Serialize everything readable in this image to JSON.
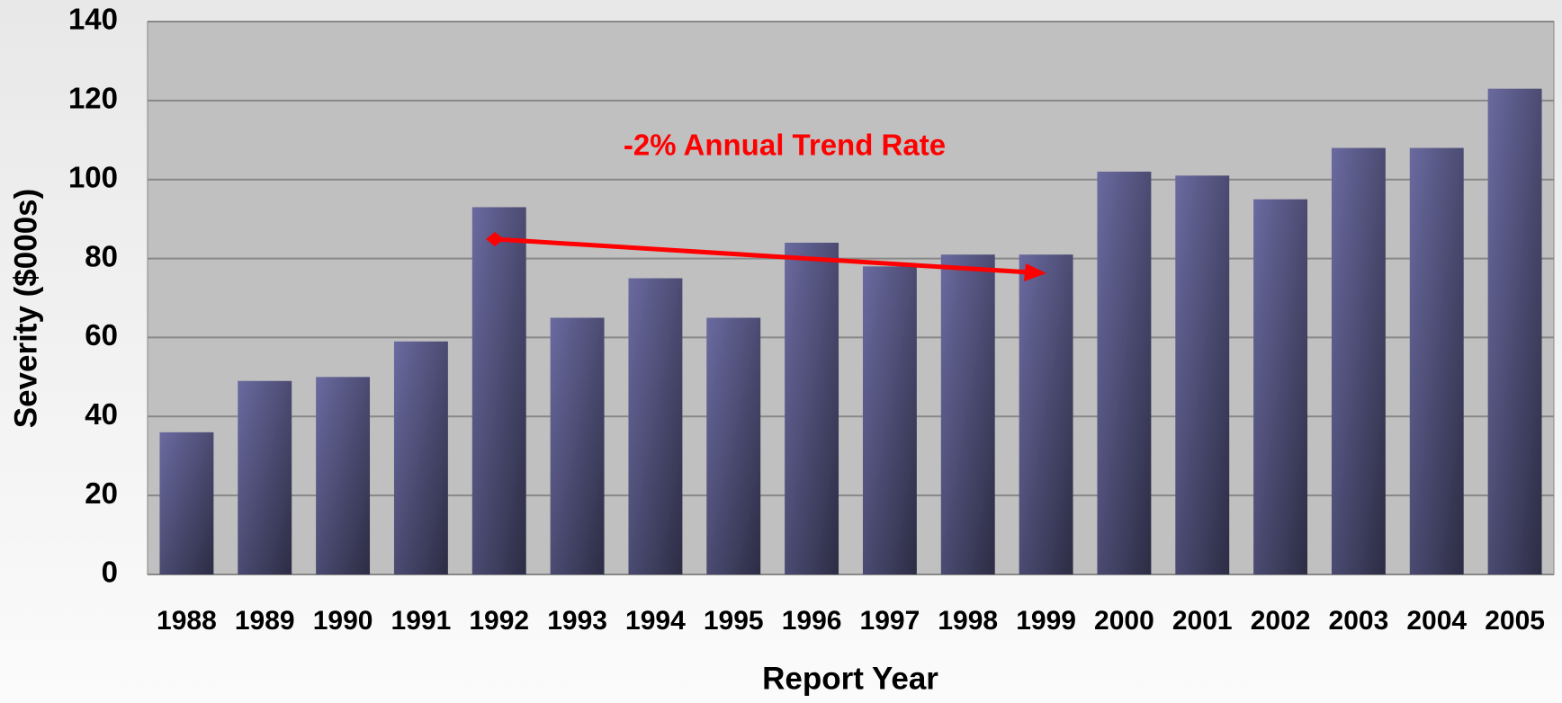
{
  "chart_data": {
    "type": "bar",
    "annotation": "-2% Annual Trend Rate",
    "x_label": "Report Year",
    "y_label": "Severity ($000s)",
    "categories": [
      "1988",
      "1989",
      "1990",
      "1991",
      "1992",
      "1993",
      "1994",
      "1995",
      "1996",
      "1997",
      "1998",
      "1999",
      "2000",
      "2001",
      "2002",
      "2003",
      "2004",
      "2005"
    ],
    "values": [
      36,
      49,
      50,
      59,
      93,
      65,
      75,
      65,
      84,
      78,
      81,
      81,
      102,
      101,
      95,
      108,
      108,
      123
    ],
    "color": "#6a6aa0",
    "ylim": [
      0,
      140
    ],
    "yticks": [
      0,
      20,
      40,
      60,
      80,
      100,
      120,
      140
    ],
    "grid": true
  }
}
